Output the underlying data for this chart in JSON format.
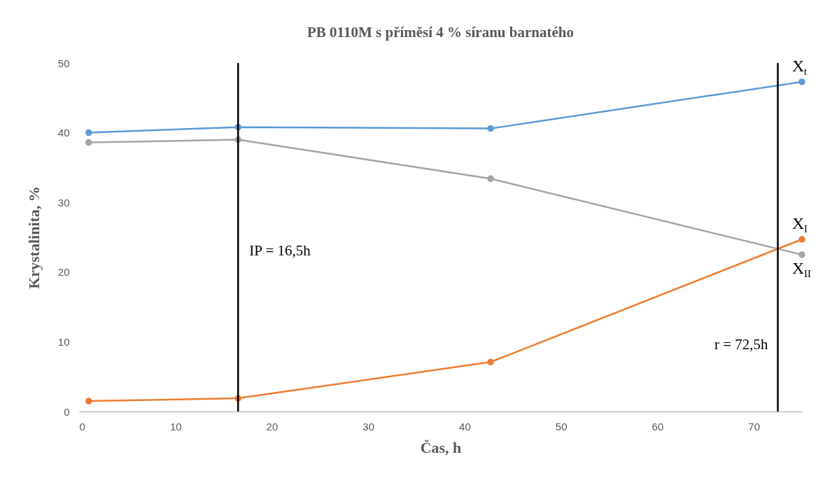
{
  "chart_data": {
    "type": "line",
    "title": "PB 0110M s příměsí 4 % síranu barnatého",
    "xlabel": "Čas, h",
    "ylabel": "Krystalinita, %",
    "series": [
      {
        "name": "X$_{t}$",
        "color": "#5b9bd5",
        "x": [
          1,
          16.5,
          42.7,
          75
        ],
        "values": [
          40.0,
          40.8,
          40.6,
          47.3
        ]
      },
      {
        "name": "X$_{II}$",
        "color": "#a5a5a5",
        "x": [
          1,
          16.5,
          42.7,
          75
        ],
        "values": [
          38.6,
          39.0,
          33.4,
          22.5
        ]
      },
      {
        "name": "X$_{I}$",
        "color": "#ed7d31",
        "x": [
          1,
          16.5,
          42.7,
          75
        ],
        "values": [
          1.5,
          1.9,
          7.1,
          24.7
        ]
      }
    ],
    "xlim": [
      0,
      75
    ],
    "xticks": [
      0,
      10,
      20,
      30,
      40,
      50,
      60,
      70
    ],
    "ylim": [
      0,
      50
    ],
    "yticks": [
      0,
      10,
      20,
      30,
      40,
      50
    ],
    "grid": false,
    "legend": false,
    "marker": "circle",
    "line_style": "solid",
    "ref_lines": [
      {
        "axis": "x",
        "value": 16.5,
        "label": "IP = 16,5h",
        "color": "#000000"
      },
      {
        "axis": "x",
        "value": 72.5,
        "label": "r = 72,5h",
        "color": "#000000"
      }
    ]
  }
}
